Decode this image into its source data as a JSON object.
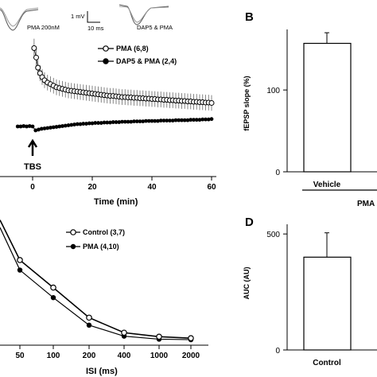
{
  "traces": {
    "left_label": "PMA 200nM",
    "right_label": "DAP5 & PMA",
    "scale_y_label": "1 mV",
    "scale_x_label": "10 ms"
  },
  "panel_labels": {
    "b": "B",
    "d": "D"
  },
  "chart_data": [
    {
      "id": "A",
      "type": "scatter",
      "xlabel": "Time (min)",
      "ylabel": "",
      "xlim": [
        -5,
        62
      ],
      "x_ticks": [
        "0",
        "20",
        "40",
        "60"
      ],
      "x_tick_values": [
        0,
        20,
        40,
        60
      ],
      "annotation": "TBS",
      "annotation_x": 0,
      "legend": "top-right",
      "series": [
        {
          "name": "PMA (6,8)",
          "marker": "open-circle",
          "x": [
            0.5,
            1.2,
            1.8,
            2.5,
            3.2,
            4,
            5,
            6,
            7,
            8,
            9,
            10,
            11,
            12,
            13,
            14,
            15,
            16,
            17,
            18,
            19,
            20,
            21,
            22,
            23,
            24,
            25,
            26,
            27,
            28,
            29,
            30,
            31,
            32,
            33,
            34,
            35,
            36,
            37,
            38,
            39,
            40,
            41,
            42,
            43,
            44,
            45,
            46,
            47,
            48,
            49,
            50,
            51,
            52,
            53,
            54,
            55,
            56,
            57,
            58,
            59,
            60
          ],
          "y": [
            200,
            188,
            175,
            168,
            163,
            159,
            156,
            154,
            152,
            150,
            149,
            148,
            147,
            146,
            145.5,
            145,
            144.5,
            144,
            143.5,
            143,
            142.5,
            142,
            141.5,
            141,
            140.5,
            140,
            139.5,
            139,
            139,
            138.5,
            138,
            137.5,
            137.5,
            137,
            137,
            136.5,
            136.5,
            136,
            136,
            135.5,
            135.5,
            135,
            135,
            134.5,
            134.5,
            134,
            134,
            133.5,
            133.5,
            133,
            133,
            132.5,
            132.5,
            132,
            132,
            131.5,
            131.5,
            131,
            131,
            130.5,
            130.5,
            130
          ],
          "err": [
            12,
            11,
            10,
            10,
            10,
            10,
            10,
            10,
            10,
            10,
            10,
            10,
            10,
            10,
            10,
            10,
            10,
            10,
            10,
            10,
            10,
            10,
            10,
            10,
            10,
            10,
            10,
            10,
            10,
            10,
            10,
            10,
            10,
            10,
            10,
            10,
            10,
            10,
            10,
            10,
            10,
            10,
            10,
            10,
            10,
            10,
            10,
            10,
            10,
            10,
            10,
            10,
            10,
            10,
            10,
            10,
            10,
            10,
            10,
            10,
            10,
            10
          ]
        },
        {
          "name": "DAP5 & PMA (2,4)",
          "marker": "filled-circle",
          "x": [
            -5,
            -4,
            -3,
            -2,
            -1,
            0,
            1,
            2,
            3,
            4,
            5,
            6,
            7,
            8,
            9,
            10,
            11,
            12,
            13,
            14,
            15,
            16,
            17,
            18,
            19,
            20,
            21,
            22,
            23,
            24,
            25,
            26,
            27,
            28,
            29,
            30,
            31,
            32,
            33,
            34,
            35,
            36,
            37,
            38,
            39,
            40,
            41,
            42,
            43,
            44,
            45,
            46,
            47,
            48,
            49,
            50,
            51,
            52,
            53,
            54,
            55,
            56,
            57,
            58,
            59,
            60
          ],
          "y": [
            100,
            100,
            100.5,
            100,
            100.5,
            100,
            95,
            96,
            97,
            97.5,
            98,
            98.5,
            99,
            99.5,
            100,
            100.5,
            101,
            101.5,
            102,
            102.5,
            103,
            103,
            103.5,
            103.5,
            104,
            104,
            104.5,
            104.5,
            104.5,
            105,
            105,
            105,
            105.5,
            105.5,
            105.5,
            106,
            106,
            106,
            106,
            106.5,
            106.5,
            106.5,
            106.5,
            107,
            107,
            107,
            107,
            107,
            107.5,
            107.5,
            107.5,
            107.5,
            107.5,
            108,
            108,
            108,
            108,
            108,
            108.5,
            108.5,
            108.5,
            108.5,
            109,
            109,
            109,
            109.5
          ]
        }
      ]
    },
    {
      "id": "B",
      "type": "bar",
      "ylabel": "fEPSP  slope (%)",
      "categories": [
        "Vehicle"
      ],
      "values": [
        157
      ],
      "err": [
        13
      ],
      "y_ticks": [
        "0",
        "100"
      ],
      "y_tick_values": [
        0,
        100
      ],
      "ylim": [
        0,
        175
      ],
      "group_label": "PMA"
    },
    {
      "id": "C",
      "type": "line",
      "xlabel": "ISI (ms)",
      "categories": [
        "50",
        "100",
        "200",
        "400",
        "1000",
        "2000"
      ],
      "legend": "top",
      "series": [
        {
          "name": "Control (3,7)",
          "marker": "open-circle",
          "y": [
            2.6,
            2.05,
            1.45,
            1.15,
            1.07,
            1.04
          ],
          "err": [
            0.05,
            0.04,
            0.03,
            0.02,
            0.02,
            0.02
          ]
        },
        {
          "name": "PMA (4,10)",
          "marker": "filled-circle",
          "y": [
            2.4,
            1.85,
            1.3,
            1.08,
            1.02,
            1.01
          ]
        }
      ],
      "lead_in_y": [
        3.4,
        3.25
      ],
      "ylim": [
        0.9,
        3.6
      ]
    },
    {
      "id": "D",
      "type": "bar",
      "ylabel": "AUC (AU)",
      "categories": [
        "Control"
      ],
      "values": [
        400
      ],
      "err": [
        105
      ],
      "y_ticks": [
        "0",
        "500"
      ],
      "y_tick_values": [
        0,
        500
      ],
      "ylim": [
        0,
        600
      ]
    }
  ]
}
